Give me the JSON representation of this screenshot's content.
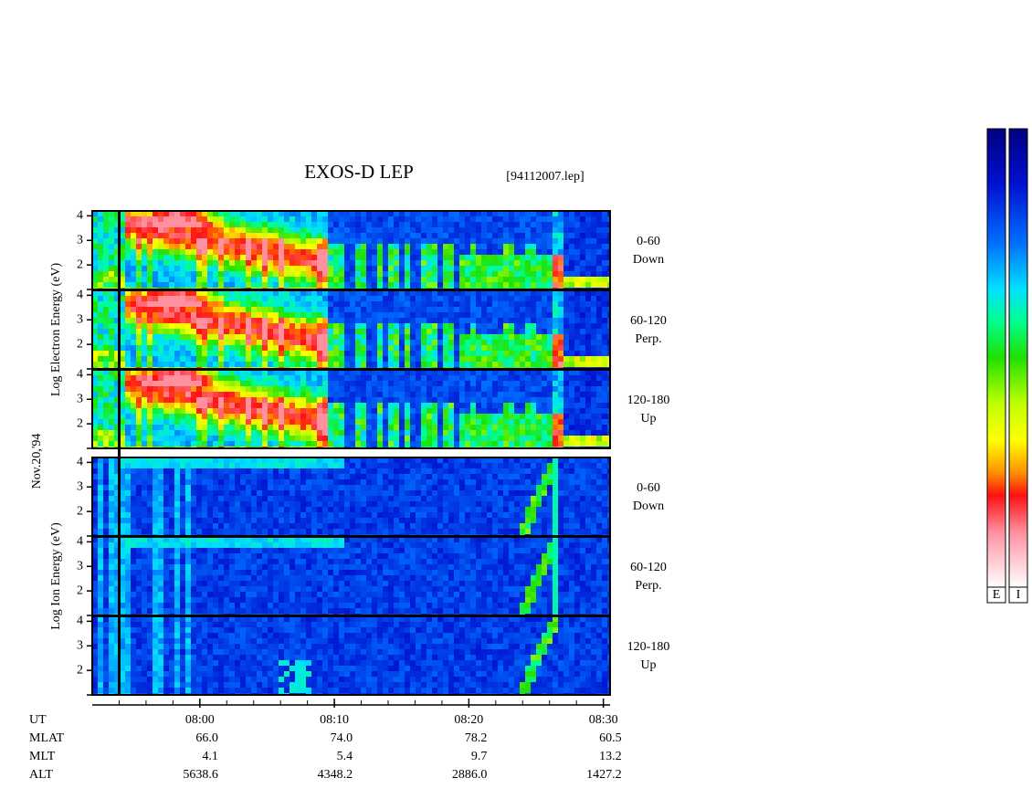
{
  "chart_data": {
    "type": "spectrogram",
    "title": "EXOS-D LEP",
    "subtitle": "[94112007.lep]",
    "date": "Nov.20,'94",
    "xlim": [
      472,
      510.5
    ],
    "xticks": [
      {
        "value": 480,
        "label": "08:00"
      },
      {
        "value": 490,
        "label": "08:10"
      },
      {
        "value": 500,
        "label": "08:20"
      },
      {
        "value": 510,
        "label": "08:30"
      }
    ],
    "xminorticks": [
      474,
      476,
      478,
      482,
      484,
      486,
      488,
      492,
      494,
      496,
      498,
      502,
      504,
      506,
      508
    ],
    "groups": [
      {
        "ylabel": "Log Electron Energy (eV)",
        "panels": [
          {
            "label": [
              "0-60",
              "Down"
            ],
            "ylim": [
              1,
              4.2
            ],
            "yticks": [
              2,
              3,
              4
            ]
          },
          {
            "label": [
              "60-120",
              "Perp."
            ],
            "ylim": [
              1,
              4.2
            ],
            "yticks": [
              2,
              3,
              4
            ]
          },
          {
            "label": [
              "120-180",
              "Up"
            ],
            "ylim": [
              1,
              4.2
            ],
            "yticks": [
              2,
              3,
              4
            ]
          }
        ]
      },
      {
        "ylabel": "Log Ion Energy (eV)",
        "panels": [
          {
            "label": [
              "0-60",
              "Down"
            ],
            "ylim": [
              1,
              4.2
            ],
            "yticks": [
              2,
              3,
              4
            ]
          },
          {
            "label": [
              "60-120",
              "Perp."
            ],
            "ylim": [
              1,
              4.2
            ],
            "yticks": [
              2,
              3,
              4
            ]
          },
          {
            "label": [
              "120-180",
              "Up"
            ],
            "ylim": [
              1,
              4.2
            ],
            "yticks": [
              2,
              3,
              4
            ]
          }
        ]
      }
    ],
    "colorbars": [
      "E",
      "I"
    ],
    "ut_label": "UT",
    "orbit_rows": [
      {
        "name": "MLAT",
        "values": [
          "66.0",
          "74.0",
          "78.2",
          "60.5"
        ]
      },
      {
        "name": "MLT",
        "values": [
          "4.1",
          "5.4",
          "9.7",
          "13.2"
        ]
      },
      {
        "name": "ALT",
        "values": [
          "5638.6",
          "4348.2",
          "2886.0",
          "1427.2"
        ]
      }
    ]
  }
}
